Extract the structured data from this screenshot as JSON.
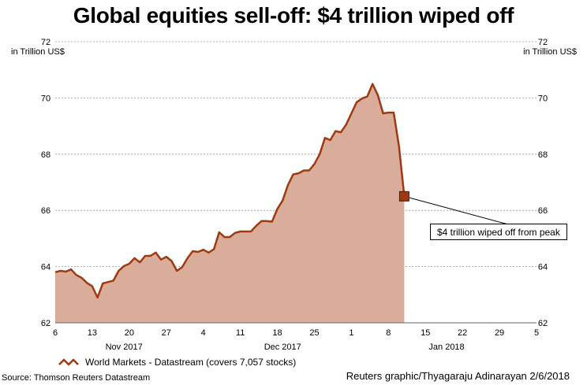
{
  "chart_data": {
    "type": "area",
    "title": "Global equities sell-off: $4 trillion wiped off",
    "ylabel": "in Trillion US$",
    "ylim": [
      62,
      72
    ],
    "y_ticks": [
      "62",
      "64",
      "66",
      "68",
      "70",
      "72"
    ],
    "y_tick_values": [
      62,
      64,
      66,
      68,
      70,
      72
    ],
    "x_range": [
      "2017-11-06",
      "2018-02-05"
    ],
    "x_ticks": [
      {
        "date": "2017-11-06",
        "label": "6"
      },
      {
        "date": "2017-11-13",
        "label": "13"
      },
      {
        "date": "2017-11-20",
        "label": "20"
      },
      {
        "date": "2017-11-27",
        "label": "27"
      },
      {
        "date": "2017-12-04",
        "label": "4"
      },
      {
        "date": "2017-12-11",
        "label": "11"
      },
      {
        "date": "2017-12-18",
        "label": "18"
      },
      {
        "date": "2017-12-25",
        "label": "25"
      },
      {
        "date": "2018-01-01",
        "label": "1"
      },
      {
        "date": "2018-01-08",
        "label": "8"
      },
      {
        "date": "2018-01-15",
        "label": "15"
      },
      {
        "date": "2018-01-22",
        "label": "22"
      },
      {
        "date": "2018-01-29",
        "label": "29"
      },
      {
        "date": "2018-02-05",
        "label": "5"
      }
    ],
    "month_labels": [
      {
        "date": "2017-11-19",
        "label": "Nov 2017"
      },
      {
        "date": "2017-12-19",
        "label": "Dec 2017"
      },
      {
        "date": "2018-01-19",
        "label": "Jan 2018"
      }
    ],
    "series": [
      {
        "name": "World Markets - Datastream (covers 7,057 stocks)",
        "color": "#9e3a12",
        "fill": "#d9ad99",
        "points": [
          [
            "2017-11-06",
            63.8
          ],
          [
            "2017-11-07",
            63.85
          ],
          [
            "2017-11-08",
            63.82
          ],
          [
            "2017-11-09",
            63.9
          ],
          [
            "2017-11-10",
            63.7
          ],
          [
            "2017-11-11",
            63.6
          ],
          [
            "2017-11-12",
            63.42
          ],
          [
            "2017-11-13",
            63.3
          ],
          [
            "2017-11-14",
            62.9
          ],
          [
            "2017-11-15",
            63.4
          ],
          [
            "2017-11-16",
            63.45
          ],
          [
            "2017-11-17",
            63.5
          ],
          [
            "2017-11-18",
            63.85
          ],
          [
            "2017-11-19",
            64.02
          ],
          [
            "2017-11-20",
            64.1
          ],
          [
            "2017-11-21",
            64.3
          ],
          [
            "2017-11-22",
            64.15
          ],
          [
            "2017-11-23",
            64.38
          ],
          [
            "2017-11-24",
            64.38
          ],
          [
            "2017-11-25",
            64.5
          ],
          [
            "2017-11-26",
            64.25
          ],
          [
            "2017-11-27",
            64.35
          ],
          [
            "2017-11-28",
            64.2
          ],
          [
            "2017-11-29",
            63.85
          ],
          [
            "2017-11-30",
            63.98
          ],
          [
            "2017-12-01",
            64.3
          ],
          [
            "2017-12-02",
            64.55
          ],
          [
            "2017-12-03",
            64.52
          ],
          [
            "2017-12-04",
            64.6
          ],
          [
            "2017-12-05",
            64.5
          ],
          [
            "2017-12-06",
            64.62
          ],
          [
            "2017-12-07",
            65.22
          ],
          [
            "2017-12-08",
            65.05
          ],
          [
            "2017-12-09",
            65.05
          ],
          [
            "2017-12-10",
            65.2
          ],
          [
            "2017-12-11",
            65.25
          ],
          [
            "2017-12-12",
            65.25
          ],
          [
            "2017-12-13",
            65.25
          ],
          [
            "2017-12-14",
            65.45
          ],
          [
            "2017-12-15",
            65.62
          ],
          [
            "2017-12-16",
            65.62
          ],
          [
            "2017-12-17",
            65.6
          ],
          [
            "2017-12-18",
            66.05
          ],
          [
            "2017-12-19",
            66.35
          ],
          [
            "2017-12-20",
            66.9
          ],
          [
            "2017-12-21",
            67.28
          ],
          [
            "2017-12-22",
            67.32
          ],
          [
            "2017-12-23",
            67.42
          ],
          [
            "2017-12-24",
            67.42
          ],
          [
            "2017-12-25",
            67.65
          ],
          [
            "2017-12-26",
            68.0
          ],
          [
            "2017-12-27",
            68.58
          ],
          [
            "2017-12-28",
            68.5
          ],
          [
            "2017-12-29",
            68.82
          ],
          [
            "2017-12-30",
            68.78
          ],
          [
            "2017-12-31",
            69.05
          ],
          [
            "2018-01-01",
            69.45
          ],
          [
            "2018-01-02",
            69.85
          ],
          [
            "2018-01-03",
            69.98
          ],
          [
            "2018-01-04",
            70.05
          ],
          [
            "2018-01-05",
            70.5
          ],
          [
            "2018-01-06",
            70.1
          ],
          [
            "2018-01-07",
            69.45
          ],
          [
            "2018-01-08",
            69.48
          ],
          [
            "2018-01-09",
            69.48
          ],
          [
            "2018-01-10",
            68.28
          ],
          [
            "2018-01-11",
            66.5
          ]
        ]
      }
    ],
    "annotations": [
      {
        "text": "$4 trillion wiped off from peak",
        "date": "2018-01-11",
        "value": 66.5
      }
    ],
    "grid": true,
    "legend_position": "bottom-left"
  },
  "footer": {
    "source": "Source: Thomson Reuters Datastream",
    "credit": "Reuters graphic/Thyagaraju Adinarayan 2/6/2018"
  }
}
